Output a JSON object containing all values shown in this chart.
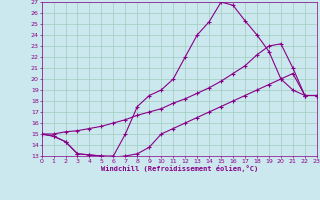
{
  "xlabel": "Windchill (Refroidissement éolien,°C)",
  "bg_color": "#cbe8ee",
  "grid_color": "#a0ccbb",
  "line_color": "#880088",
  "xlim": [
    0,
    23
  ],
  "ylim": [
    13,
    27
  ],
  "xticks": [
    0,
    1,
    2,
    3,
    4,
    5,
    6,
    7,
    8,
    9,
    10,
    11,
    12,
    13,
    14,
    15,
    16,
    17,
    18,
    19,
    20,
    21,
    22,
    23
  ],
  "yticks": [
    13,
    14,
    15,
    16,
    17,
    18,
    19,
    20,
    21,
    22,
    23,
    24,
    25,
    26,
    27
  ],
  "series": [
    {
      "x": [
        0,
        1,
        2,
        3,
        4,
        5,
        6,
        7,
        8,
        9,
        10,
        11,
        12,
        13,
        14,
        15,
        16,
        17,
        18,
        19,
        20,
        21,
        22,
        23
      ],
      "y": [
        15,
        14.8,
        14.3,
        13.2,
        13.1,
        13.0,
        12.9,
        13.0,
        13.2,
        13.8,
        15.0,
        15.5,
        16.0,
        16.5,
        17.0,
        17.5,
        18.0,
        18.5,
        19.0,
        19.5,
        20.0,
        20.5,
        18.5,
        18.5
      ]
    },
    {
      "x": [
        0,
        1,
        2,
        3,
        4,
        5,
        6,
        7,
        8,
        9,
        10,
        11,
        12,
        13,
        14,
        15,
        16,
        17,
        18,
        19,
        20,
        21,
        22,
        23
      ],
      "y": [
        15,
        14.8,
        14.3,
        13.2,
        13.1,
        13.0,
        13.0,
        15.0,
        17.5,
        18.5,
        19.0,
        20.0,
        22.0,
        24.0,
        25.2,
        27.0,
        26.7,
        25.3,
        24.0,
        22.5,
        20.0,
        19.0,
        18.5,
        18.5
      ]
    },
    {
      "x": [
        0,
        1,
        2,
        3,
        4,
        5,
        6,
        7,
        8,
        9,
        10,
        11,
        12,
        13,
        14,
        15,
        16,
        17,
        18,
        19,
        20,
        21,
        22,
        23
      ],
      "y": [
        15,
        15.0,
        15.2,
        15.3,
        15.5,
        15.7,
        16.0,
        16.3,
        16.7,
        17.0,
        17.3,
        17.8,
        18.2,
        18.7,
        19.2,
        19.8,
        20.5,
        21.2,
        22.2,
        23.0,
        23.2,
        21.0,
        18.5,
        18.5
      ]
    }
  ]
}
